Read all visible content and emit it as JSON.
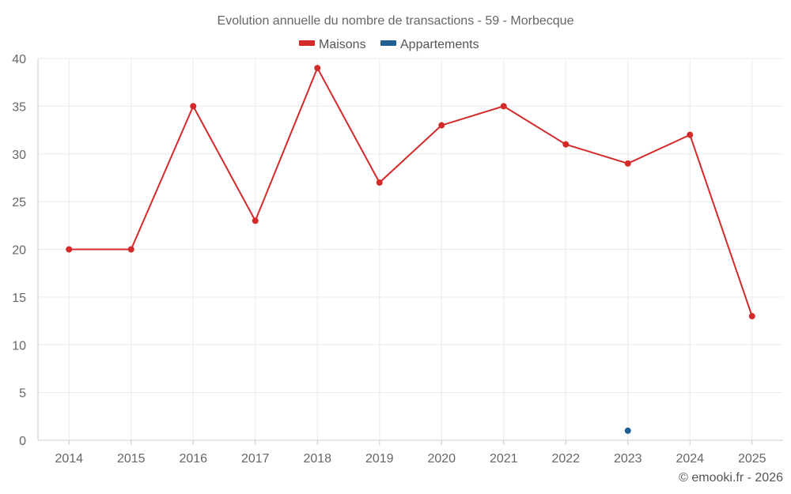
{
  "colors": {
    "maisons": "#d42a2a",
    "appartements": "#1f5f91",
    "grid": "#ebebeb",
    "text": "#666666"
  },
  "credit": "© emooki.fr - 2026",
  "chart_data": {
    "type": "line",
    "title": "Evolution annuelle du nombre de transactions - 59 - Morbecque",
    "xlabel": "",
    "ylabel": "",
    "ylim": [
      0,
      40
    ],
    "yticks": [
      "0",
      "5",
      "10",
      "15",
      "20",
      "25",
      "30",
      "35",
      "40"
    ],
    "categories": [
      "2014",
      "2015",
      "2016",
      "2017",
      "2018",
      "2019",
      "2020",
      "2021",
      "2022",
      "2023",
      "2024",
      "2025"
    ],
    "legend_position": "top-center",
    "series": [
      {
        "name": "Maisons",
        "color": "#d42a2a",
        "values": [
          20,
          20,
          35,
          23,
          39,
          27,
          33,
          35,
          31,
          29,
          32,
          13
        ]
      },
      {
        "name": "Appartements",
        "color": "#1f5f91",
        "values": [
          null,
          null,
          null,
          null,
          null,
          null,
          null,
          null,
          null,
          1,
          null,
          null
        ]
      }
    ]
  }
}
